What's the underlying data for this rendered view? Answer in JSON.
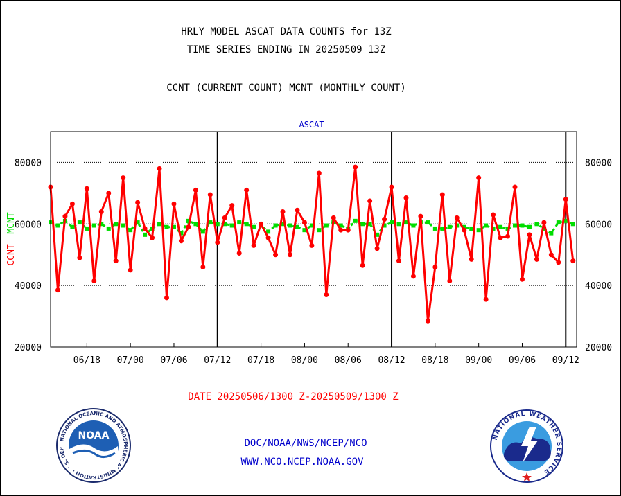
{
  "header": {
    "title_line1": "HRLY MODEL ASCAT DATA COUNTS for 13Z",
    "title_line2": "TIME SERIES ENDING IN 20250509 13Z",
    "subtitle": "CCNT (CURRENT COUNT) MCNT (MONTHLY COUNT)"
  },
  "footer": {
    "date_range": "DATE 20250506/1300 Z-20250509/1300 Z",
    "link1": "DOC/NOAA/NWS/NCEP/NCO",
    "link2": "WWW.NCO.NCEP.NOAA.GOV"
  },
  "logos": {
    "noaa_text": "NOAA",
    "noaa_ring": "NATIONAL OCEANIC AND ATMOSPHERIC ADMINISTRATION · U.S. DEPARTMENT OF COMMERCE ·",
    "nws_ring": "NATIONAL WEATHER SERVICE"
  },
  "colors": {
    "ccnt": "#ff0000",
    "mcnt": "#00dd00",
    "chart_title": "#0000cc",
    "footer_date": "#ff0000",
    "footer_links": "#0000cc"
  },
  "chart_data": {
    "type": "line",
    "title": "ASCAT",
    "ylabel_left_red": "CCNT",
    "ylabel_left_green": "MCNT",
    "ylim": [
      20000,
      90000
    ],
    "yticks": [
      "20000",
      "40000",
      "60000",
      "80000"
    ],
    "xlim": [
      0,
      72.5
    ],
    "xticks": [
      {
        "label": "06/18",
        "x": 5
      },
      {
        "label": "07/00",
        "x": 11
      },
      {
        "label": "07/06",
        "x": 17
      },
      {
        "label": "07/12",
        "x": 23
      },
      {
        "label": "07/18",
        "x": 29
      },
      {
        "label": "08/00",
        "x": 35
      },
      {
        "label": "08/06",
        "x": 41
      },
      {
        "label": "08/12",
        "x": 47
      },
      {
        "label": "08/18",
        "x": 53
      },
      {
        "label": "09/00",
        "x": 59
      },
      {
        "label": "09/06",
        "x": 65
      },
      {
        "label": "09/12",
        "x": 71
      }
    ],
    "day_separators": [
      23,
      47,
      71
    ],
    "grid": "horizontal dotted",
    "legend": "none",
    "series": [
      {
        "name": "CCNT",
        "values": [
          72000,
          38500,
          62500,
          66500,
          49000,
          71500,
          41500,
          64000,
          70000,
          48000,
          75000,
          45000,
          67000,
          58500,
          55500,
          78000,
          36000,
          66500,
          54500,
          59000,
          71000,
          46000,
          69500,
          54000,
          62000,
          66000,
          50500,
          71000,
          53000,
          60000,
          55500,
          50000,
          64000,
          50000,
          64500,
          60500,
          53000,
          76500,
          37000,
          62000,
          58000,
          58000,
          78500,
          46500,
          67500,
          52000,
          61500,
          72000,
          48000,
          68500,
          43000,
          62500,
          28500,
          46000,
          69500,
          41500,
          62000,
          58000,
          48500,
          75000,
          35500,
          63000,
          55500,
          56000,
          72000,
          42000,
          56500,
          48500,
          60500,
          50000,
          47500,
          68000,
          48000
        ]
      },
      {
        "name": "MCNT",
        "values": [
          60500,
          59500,
          61000,
          59000,
          60500,
          58500,
          59500,
          60000,
          58500,
          60000,
          59500,
          58000,
          60500,
          56500,
          58500,
          60000,
          59000,
          59000,
          57000,
          61000,
          60000,
          57500,
          60500,
          60000,
          60000,
          59500,
          60500,
          60000,
          59000,
          59500,
          57500,
          59500,
          60000,
          59500,
          59000,
          58000,
          59500,
          58000,
          59500,
          60500,
          59500,
          58500,
          61000,
          60000,
          60000,
          56500,
          59500,
          60500,
          60000,
          60500,
          59500,
          60500,
          60500,
          58500,
          58500,
          59000,
          59500,
          59000,
          58500,
          58000,
          59500,
          58500,
          59000,
          58500,
          59500,
          59500,
          59000,
          60000,
          58500,
          57000,
          60500,
          61000,
          60000
        ]
      }
    ]
  }
}
